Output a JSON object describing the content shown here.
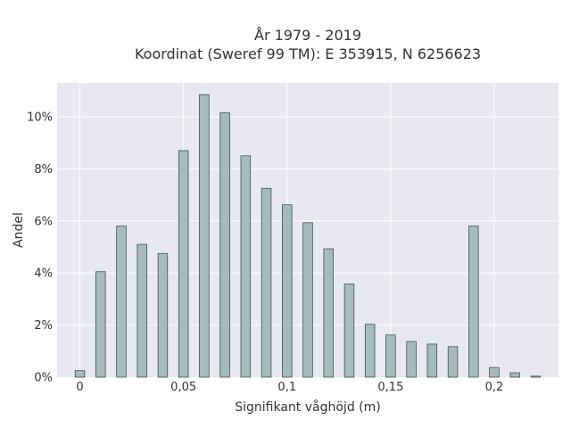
{
  "chart_data": {
    "type": "bar",
    "title_line1": "År 1979 - 2019",
    "title_line2": "Koordinat (Sweref 99 TM): E 353915, N 6256623",
    "xlabel": "Signifikant våghöjd (m)",
    "ylabel": "Andel",
    "x": [
      0,
      0.01,
      0.02,
      0.03,
      0.04,
      0.05,
      0.06,
      0.07,
      0.08,
      0.09,
      0.1,
      0.11,
      0.12,
      0.13,
      0.14,
      0.15,
      0.16,
      0.17,
      0.18,
      0.19,
      0.2,
      0.21,
      0.22
    ],
    "values": [
      0.25,
      4.05,
      5.8,
      5.1,
      4.75,
      8.7,
      10.85,
      10.15,
      8.5,
      7.25,
      6.62,
      5.93,
      4.93,
      3.58,
      2.03,
      1.62,
      1.37,
      1.27,
      1.17,
      5.8,
      0.37,
      0.17,
      0.04
    ],
    "xlim": [
      -0.011,
      0.231
    ],
    "ylim": [
      0,
      11.3
    ],
    "x_ticks": [
      0,
      0.05,
      0.1,
      0.15,
      0.2
    ],
    "x_tick_labels": [
      "0",
      "0,05",
      "0,1",
      "0,15",
      "0,2"
    ],
    "y_ticks": [
      0,
      2,
      4,
      6,
      8,
      10
    ],
    "y_tick_labels": [
      "0%",
      "2%",
      "4%",
      "6%",
      "8%",
      "10%"
    ],
    "grid": true,
    "bar_color": "#a5bcbd",
    "bar_edge_color": "#3e5250",
    "plot_bg": "#e8e8f0"
  }
}
